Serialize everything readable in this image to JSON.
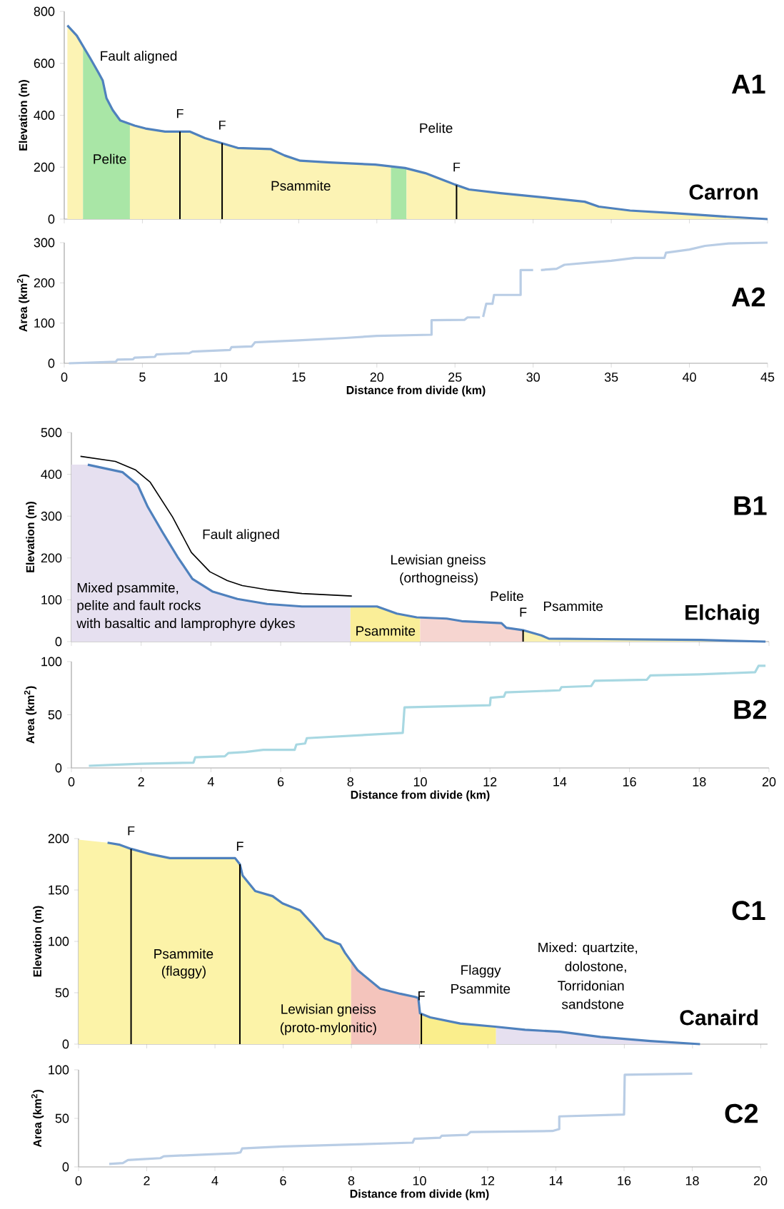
{
  "chart_data": [
    {
      "type": "line",
      "ylabel": "Elevation (m)",
      "xlim": [
        0,
        45
      ],
      "xticks": [
        0,
        5,
        10,
        15,
        20,
        25,
        30,
        35,
        40,
        45
      ],
      "ylim": [
        0,
        800
      ],
      "yticks": [
        0,
        200,
        400,
        600,
        800
      ],
      "tick_labels": "y",
      "series": [
        {
          "type": "area",
          "color": "#fcf3b4",
          "x": [
            0.2,
            0.8,
            1.2
          ],
          "values": [
            746,
            707,
            667
          ]
        },
        {
          "type": "area",
          "color": "#a9e6a6",
          "x": [
            1.2,
            1.66,
            2.2,
            2.46,
            2.7,
            3.1,
            3.58,
            4.2
          ],
          "values": [
            667,
            620,
            563,
            534,
            466,
            420,
            380,
            367
          ]
        },
        {
          "type": "area",
          "color": "#fcf3b4",
          "x": [
            4.2,
            4.5,
            5.2,
            6.45,
            8.05,
            9.0,
            10.06,
            11.1,
            13.2,
            14.1,
            15.1,
            17,
            19.9,
            20.9
          ],
          "values": [
            367,
            360,
            349,
            337,
            337,
            312,
            293,
            274,
            270,
            245,
            225,
            218,
            210,
            203
          ]
        },
        {
          "type": "area",
          "color": "#a9e6a6",
          "x": [
            20.9,
            21.8,
            21.9
          ],
          "values": [
            203,
            197,
            196
          ]
        },
        {
          "type": "area",
          "color": "#fcf3b4",
          "x": [
            21.9,
            23.1,
            25,
            25.9,
            27.9,
            31.1,
            33.3,
            34.2,
            36.2,
            39,
            42.2,
            45
          ],
          "values": [
            196,
            177,
            133,
            114,
            100,
            81,
            67,
            48,
            33,
            23,
            10,
            0
          ]
        },
        {
          "color": "#4f81bd",
          "x": [
            0.2,
            0.8,
            1.66,
            2.2,
            2.46,
            2.7,
            3.1,
            3.58,
            4.5,
            5.2,
            6.45,
            8.05,
            9.0,
            10.06,
            11.1,
            13.2,
            14.1,
            15.1,
            17,
            19.9,
            21.8,
            23.1,
            25,
            25.9,
            27.9,
            31.1,
            33.3,
            34.2,
            36.2,
            39,
            42.2,
            45
          ],
          "values": [
            746,
            707,
            620,
            563,
            534,
            466,
            420,
            380,
            360,
            349,
            337,
            337,
            312,
            293,
            274,
            270,
            245,
            225,
            218,
            210,
            197,
            177,
            133,
            114,
            100,
            81,
            67,
            48,
            33,
            23,
            10,
            0
          ]
        }
      ],
      "ref_lines": [
        {
          "axis": "x",
          "value": 7.4,
          "label": "F"
        },
        {
          "axis": "x",
          "value": 10.1,
          "label": "F"
        },
        {
          "axis": "x",
          "value": 25.1,
          "label": "F"
        }
      ],
      "annotations": [
        "A1",
        "Carron",
        "Fault aligned",
        "Pelite",
        "Psammite",
        "Pelite"
      ]
    },
    {
      "type": "line",
      "xlabel": "Distance from divide (km)",
      "ylabel": "Area (km$^{2}$)",
      "xlim": [
        0,
        45
      ],
      "xticks": [
        0,
        5,
        10,
        15,
        20,
        25,
        30,
        35,
        40,
        45
      ],
      "ylim": [
        0,
        300
      ],
      "yticks": [
        0,
        100,
        200,
        300
      ],
      "series": [
        {
          "color": "#b9cde5",
          "x": [
            0.3,
            2,
            3.3,
            3.4,
            4.4,
            4.5,
            5.8,
            5.9,
            7,
            8,
            8.2,
            10.6,
            10.7,
            12,
            12.2,
            15,
            18,
            20,
            23.5,
            23.5,
            25.6,
            25.8,
            26.6,
            26.7,
            26.8,
            27,
            27.4,
            27.5,
            29.2,
            29.2,
            30,
            30.2,
            30.5,
            31.5,
            32,
            33.5,
            35,
            36.5,
            38.4,
            38.5,
            40,
            41,
            42.5,
            45
          ],
          "values": [
            0,
            2,
            4,
            9,
            10,
            14,
            16,
            22,
            24,
            25,
            29,
            33,
            40,
            42,
            52,
            57,
            63,
            68,
            71,
            107,
            108,
            114,
            114,
            null,
            115,
            148,
            148,
            170,
            170,
            232,
            232,
            null,
            232,
            235,
            245,
            250,
            255,
            262,
            262,
            275,
            283,
            292,
            298,
            300
          ]
        }
      ],
      "annotations": [
        "A2"
      ]
    },
    {
      "type": "line",
      "ylabel": "Elevation (m)",
      "xlim": [
        0,
        20
      ],
      "xticks": [
        0,
        2,
        4,
        6,
        8,
        10,
        12,
        14,
        16,
        18,
        20
      ],
      "ylim": [
        0,
        500
      ],
      "yticks": [
        0,
        100,
        200,
        300,
        400,
        500
      ],
      "tick_labels": "y",
      "series": [
        {
          "type": "area",
          "color": "#e6e0f0",
          "x": [
            0,
            0.47,
            1.47,
            1.9,
            2.19,
            2.61,
            3.04,
            3.47,
            4.04,
            4.76,
            5.61,
            6.61,
            8
          ],
          "values": [
            423,
            423,
            405,
            375,
            322,
            262,
            203,
            150,
            120,
            102,
            90,
            84,
            84
          ]
        },
        {
          "type": "area",
          "color": "#faee98",
          "x": [
            8,
            8.76,
            9.33,
            9.9,
            10
          ],
          "values": [
            84,
            84,
            67,
            58,
            58
          ]
        },
        {
          "type": "area",
          "color": "#f6d5d0",
          "x": [
            10,
            10.76,
            11.19,
            12.33,
            12.47,
            12.95
          ],
          "values": [
            58,
            55,
            49,
            44,
            33,
            27
          ]
        },
        {
          "type": "area",
          "color": "#faf1b0",
          "x": [
            12.95,
            13.47,
            13.69,
            15.19,
            18.04,
            19.9
          ],
          "values": [
            27,
            15,
            7,
            6,
            4,
            0
          ]
        },
        {
          "color": "#4f81bd",
          "x": [
            0.47,
            1.47,
            1.9,
            2.19,
            2.61,
            3.04,
            3.47,
            4.04,
            4.76,
            5.61,
            6.61,
            8.76,
            9.33,
            9.9,
            10.76,
            11.19,
            12.33,
            12.47,
            12.97,
            13.47,
            13.69,
            15.19,
            18.04,
            19.9
          ],
          "values": [
            423,
            405,
            375,
            322,
            262,
            203,
            150,
            120,
            102,
            90,
            84,
            84,
            67,
            58,
            55,
            49,
            44,
            33,
            27,
            15,
            7,
            6,
            4,
            0
          ]
        },
        {
          "name": "Fault aligned",
          "color": "#000000",
          "x": [
            0.26,
            1.26,
            1.83,
            2.26,
            2.9,
            3.44,
            3.97,
            4.47,
            4.9,
            5.61,
            6.61,
            8.04
          ],
          "values": [
            443,
            431,
            411,
            381,
            298,
            213,
            167,
            146,
            134,
            124,
            115,
            109
          ]
        }
      ],
      "ref_lines": [
        {
          "axis": "x",
          "value": 12.95,
          "label": "F"
        }
      ],
      "annotations": [
        "B1",
        "Elchaig",
        "Mixed psammite,",
        "pelite and fault rocks",
        "with basaltic and lamprophyre dykes",
        "Psammite",
        "Lewisian gneiss",
        "(orthogneiss)",
        "Pelite",
        "Psammite"
      ]
    },
    {
      "type": "line",
      "xlabel": "Distance from divide (km)",
      "ylabel": "Area (km$^{2}$)",
      "xlim": [
        0,
        20
      ],
      "xticks": [
        0,
        2,
        4,
        6,
        8,
        10,
        12,
        14,
        16,
        18,
        20
      ],
      "ylim": [
        0,
        100
      ],
      "yticks": [
        0,
        50,
        100
      ],
      "series": [
        {
          "color": "#a8d8e2",
          "x": [
            0.5,
            1.2,
            2,
            3.5,
            3.55,
            4.4,
            4.5,
            5,
            5.5,
            6.4,
            6.45,
            6.7,
            6.75,
            9.5,
            9.55,
            12,
            12.02,
            12.4,
            12.45,
            14,
            14.05,
            14.9,
            15,
            16.5,
            16.6,
            18,
            19.6,
            19.7,
            19.9
          ],
          "values": [
            2,
            3,
            4,
            5,
            10,
            11,
            14,
            15,
            17,
            17,
            22,
            23,
            28,
            33,
            57,
            59,
            66,
            67,
            71,
            73,
            76,
            77,
            82,
            83,
            87,
            88,
            90,
            96,
            96
          ]
        }
      ],
      "annotations": [
        "B2"
      ]
    },
    {
      "type": "line",
      "ylabel": "Elevation (m)",
      "xlim": [
        0,
        20.2
      ],
      "xticks": [
        0,
        2,
        4,
        6,
        8,
        10,
        12,
        14,
        16,
        18,
        20
      ],
      "ylim": [
        0,
        200
      ],
      "yticks": [
        0,
        50,
        100,
        150,
        200
      ],
      "tick_labels": "y",
      "series": [
        {
          "type": "area",
          "color": "#fcf3a8",
          "x": [
            0,
            0.85,
            1.21,
            1.54,
            2.09,
            2.68,
            4.59,
            4.73,
            4.81,
            5.18,
            5.69,
            5.98,
            6.5,
            6.86,
            7.22,
            7.67,
            7.81,
            7.96,
            7.99
          ],
          "values": [
            199,
            196,
            194,
            190,
            185,
            181,
            181,
            175,
            164,
            149,
            144,
            137,
            130,
            117,
            103,
            97,
            89,
            82,
            81
          ]
        },
        {
          "type": "area",
          "color": "#f4c4bc",
          "x": [
            7.99,
            8.18,
            8.84,
            9.43,
            9.86,
            9.96,
            10.01
          ],
          "values": [
            81,
            72,
            54,
            49,
            46,
            45,
            30
          ]
        },
        {
          "type": "area",
          "color": "#faee8c",
          "x": [
            10.01,
            10.31,
            11.19,
            12.21,
            12.24
          ],
          "values": [
            30,
            26,
            20,
            17,
            17
          ]
        },
        {
          "type": "area",
          "color": "#e6e0f0",
          "x": [
            12.24,
            13.09,
            14.12,
            15.3,
            16.76,
            18.22
          ],
          "values": [
            17,
            14,
            12,
            7,
            3,
            0
          ]
        },
        {
          "color": "#4f81bd",
          "x": [
            0.85,
            1.21,
            1.54,
            2.09,
            2.68,
            4.59,
            4.73,
            4.81,
            5.18,
            5.69,
            5.98,
            6.5,
            6.86,
            7.22,
            7.67,
            7.81,
            7.96,
            8.18,
            8.84,
            9.43,
            9.86,
            9.96,
            10.01,
            10.31,
            11.19,
            12.21,
            13.09,
            14.12,
            15.3,
            16.76,
            18.22
          ],
          "values": [
            196,
            194,
            190,
            185,
            181,
            181,
            175,
            164,
            149,
            144,
            137,
            130,
            117,
            103,
            97,
            89,
            82,
            72,
            54,
            49,
            46,
            45,
            30,
            26,
            20,
            17,
            14,
            12,
            7,
            3,
            0
          ]
        }
      ],
      "ref_lines": [
        {
          "axis": "x",
          "value": 1.54,
          "label": "F"
        },
        {
          "axis": "x",
          "value": 4.73,
          "label": "F"
        },
        {
          "axis": "x",
          "value": 10.05,
          "label": "F"
        }
      ],
      "annotations": [
        "C1",
        "Canaird",
        "Psammite",
        "(flaggy)",
        "Lewisian gneiss",
        "(proto-mylonitic)",
        "Flaggy",
        "Psammite",
        "Mixed: quartzite,",
        "dolostone,",
        "Torridonian",
        "sandstone"
      ]
    },
    {
      "type": "line",
      "xlabel": "Distance from divide (km)",
      "ylabel": "Area (km$^{2}$)",
      "xlim": [
        0,
        20
      ],
      "xticks": [
        0,
        2,
        4,
        6,
        8,
        10,
        12,
        14,
        16,
        18,
        20
      ],
      "ylim": [
        0,
        100
      ],
      "yticks": [
        0,
        50,
        100
      ],
      "series": [
        {
          "color": "#b9cde5",
          "x": [
            0.9,
            1.3,
            1.45,
            1.9,
            2.4,
            2.5,
            4.6,
            4.75,
            4.8,
            6,
            8,
            9.8,
            9.85,
            10.6,
            10.65,
            11.4,
            11.5,
            13.9,
            14.1,
            14.1,
            16,
            16.02,
            18
          ],
          "values": [
            3,
            4,
            7,
            8,
            9,
            11,
            14,
            15,
            19,
            21,
            23,
            25,
            29,
            30,
            32,
            33,
            36,
            37,
            39,
            52,
            54,
            95,
            96
          ]
        }
      ],
      "annotations": [
        "C2"
      ]
    }
  ]
}
